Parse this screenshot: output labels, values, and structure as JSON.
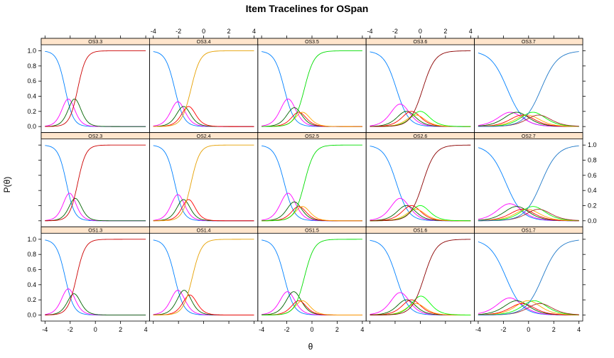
{
  "chart_data": {
    "type": "line",
    "title": "Item Tracelines for OSpan",
    "xlabel": "θ",
    "ylabel": "P(θ)",
    "xlim": [
      -4.3,
      4.3
    ],
    "ylim": [
      -0.08,
      1.08
    ],
    "x_ticks": [
      -4,
      -2,
      0,
      2,
      4
    ],
    "y_ticks": [
      0.0,
      0.2,
      0.4,
      0.6,
      0.8,
      1.0
    ],
    "grid": false,
    "layout": {
      "columns": 5,
      "rows": 3
    },
    "series_colors": [
      "#0080ff",
      "#ff00ff",
      "#006400",
      "#ff0000",
      "#ffa500",
      "#00ff00",
      "#a52a2a",
      "#800080",
      "#008b8b",
      "#0000ff",
      "#808000",
      "#ff1493"
    ],
    "panels": [
      {
        "label": "OS3.3",
        "row": 0,
        "col": 0,
        "a": 1.8,
        "b": [
          -2.4,
          -1.9,
          -1.4
        ],
        "top_color": "#cc0000"
      },
      {
        "label": "OS3.4",
        "row": 0,
        "col": 1,
        "a": 1.6,
        "b": [
          -2.3,
          -1.8,
          -1.4,
          -1.0
        ],
        "top_color": "#e6a000"
      },
      {
        "label": "OS3.5",
        "row": 0,
        "col": 2,
        "a": 1.5,
        "b": [
          -2.2,
          -1.6,
          -1.2,
          -0.9,
          -0.6
        ],
        "top_color": "#00dd00"
      },
      {
        "label": "OS3.6",
        "row": 0,
        "col": 3,
        "a": 1.2,
        "b": [
          -1.9,
          -1.3,
          -0.9,
          -0.5,
          -0.2,
          0.2
        ],
        "top_color": "#8b0000"
      },
      {
        "label": "OS3.7",
        "row": 0,
        "col": 4,
        "a": 0.9,
        "b": [
          -1.7,
          -1.2,
          -0.7,
          -0.3,
          0.1,
          0.6,
          1.0
        ],
        "top_color": "#1e78c8"
      },
      {
        "label": "OS2.3",
        "row": 1,
        "col": 0,
        "a": 1.8,
        "b": [
          -2.3,
          -1.8,
          -1.4
        ],
        "top_color": "#cc0000"
      },
      {
        "label": "OS2.4",
        "row": 1,
        "col": 1,
        "a": 1.7,
        "b": [
          -2.3,
          -1.8,
          -1.4,
          -1.0
        ],
        "top_color": "#e6a000"
      },
      {
        "label": "OS2.5",
        "row": 1,
        "col": 2,
        "a": 1.5,
        "b": [
          -2.2,
          -1.6,
          -1.2,
          -0.9,
          -0.6
        ],
        "top_color": "#00dd00"
      },
      {
        "label": "OS2.6",
        "row": 1,
        "col": 3,
        "a": 1.2,
        "b": [
          -1.9,
          -1.3,
          -0.9,
          -0.5,
          -0.2,
          0.2
        ],
        "top_color": "#8b0000"
      },
      {
        "label": "OS2.7",
        "row": 1,
        "col": 4,
        "a": 0.9,
        "b": [
          -1.8,
          -1.2,
          -0.7,
          -0.3,
          0.1,
          0.6,
          1.0
        ],
        "top_color": "#1e78c8"
      },
      {
        "label": "OS1.3",
        "row": 2,
        "col": 0,
        "a": 1.7,
        "b": [
          -2.4,
          -1.9,
          -1.5
        ],
        "top_color": "#cc0000"
      },
      {
        "label": "OS1.4",
        "row": 2,
        "col": 1,
        "a": 1.6,
        "b": [
          -2.3,
          -1.8,
          -1.3,
          -0.9
        ],
        "top_color": "#e6a000"
      },
      {
        "label": "OS1.5",
        "row": 2,
        "col": 2,
        "a": 1.5,
        "b": [
          -2.2,
          -1.7,
          -1.2,
          -0.9,
          -0.6
        ],
        "top_color": "#00dd00"
      },
      {
        "label": "OS1.6",
        "row": 2,
        "col": 3,
        "a": 1.2,
        "b": [
          -1.9,
          -1.3,
          -0.9,
          -0.5,
          -0.2,
          0.3
        ],
        "top_color": "#8b0000"
      },
      {
        "label": "OS1.7",
        "row": 2,
        "col": 4,
        "a": 0.9,
        "b": [
          -1.8,
          -1.2,
          -0.7,
          -0.3,
          0.2,
          0.7,
          1.1
        ],
        "top_color": "#1e78c8"
      }
    ]
  }
}
